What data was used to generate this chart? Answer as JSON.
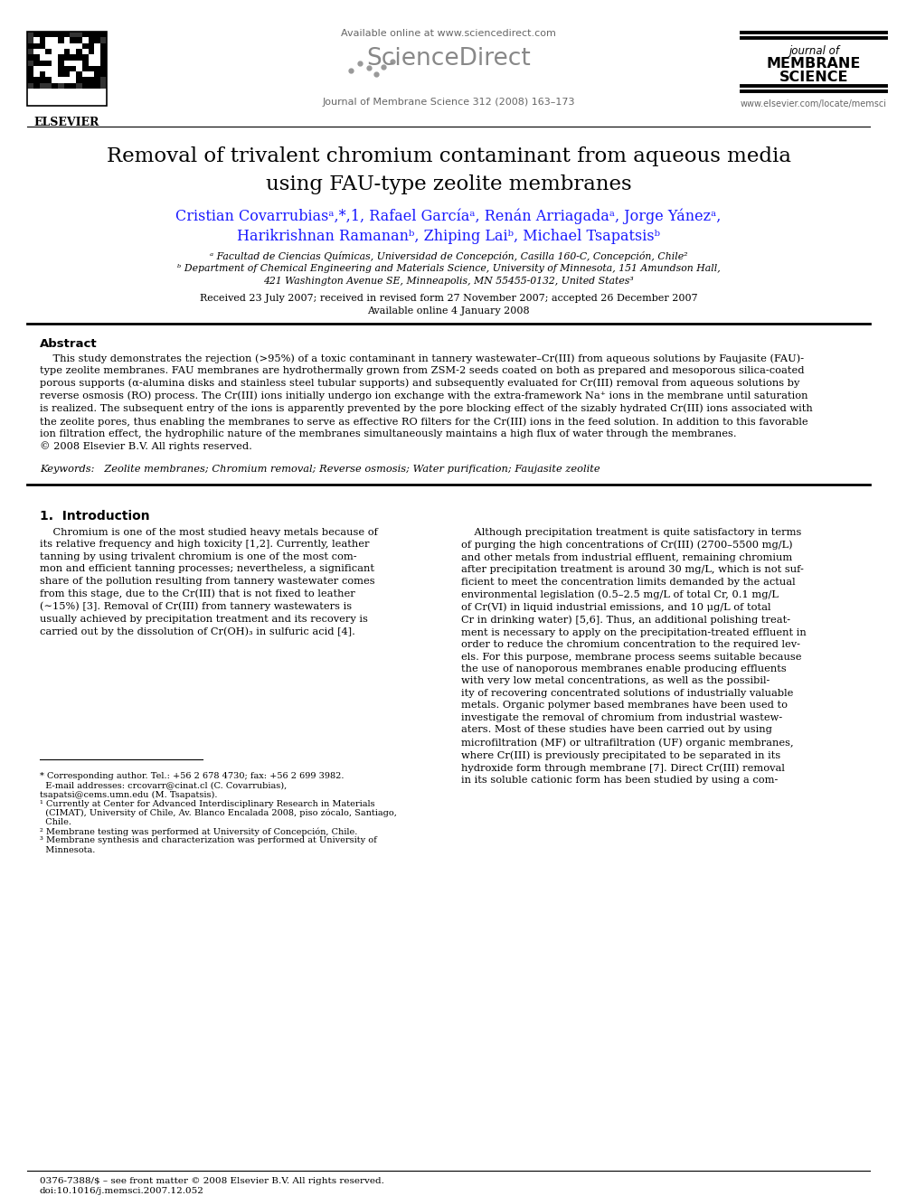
{
  "bg_color": "#ffffff",
  "title_line1": "Removal of trivalent chromium contaminant from aqueous media",
  "title_line2": "using FAU-type zeolite membranes",
  "author_line1": "Cristian Covarrubiasᵃ,*,1, Rafael Garcíaᵃ, Renán Arriagadaᵃ, Jorge Yánezᵃ,",
  "author_line2": "Harikrishnan Ramananᵇ, Zhiping Laiᵇ, Michael Tsapatsisᵇ",
  "affil_a": "ᵃ Facultad de Ciencias Químicas, Universidad de Concepción, Casilla 160-C, Concepción, Chile²",
  "affil_b": "ᵇ Department of Chemical Engineering and Materials Science, University of Minnesota, 151 Amundson Hall,",
  "affil_b2": "421 Washington Avenue SE, Minneapolis, MN 55455-0132, United States³",
  "received": "Received 23 July 2007; received in revised form 27 November 2007; accepted 26 December 2007",
  "available": "Available online 4 January 2008",
  "header_url": "Available online at www.sciencedirect.com",
  "journal_info": "Journal of Membrane Science 312 (2008) 163–173",
  "journal_name_line1": "journal of",
  "journal_name_line2": "MEMBRANE",
  "journal_name_line3": "SCIENCE",
  "elsevier_text": "ELSEVIER",
  "website": "www.elsevier.com/locate/memsci",
  "abstract_title": "Abstract",
  "keywords": "Keywords:   Zeolite membranes; Chromium removal; Reverse osmosis; Water purification; Faujasite zeolite",
  "section1_title": "1.  Introduction",
  "bottom_issn": "0376-7388/$ – see front matter © 2008 Elsevier B.V. All rights reserved.",
  "bottom_doi": "doi:10.1016/j.memsci.2007.12.052",
  "author_color": "#1a1aff",
  "text_color": "#000000"
}
